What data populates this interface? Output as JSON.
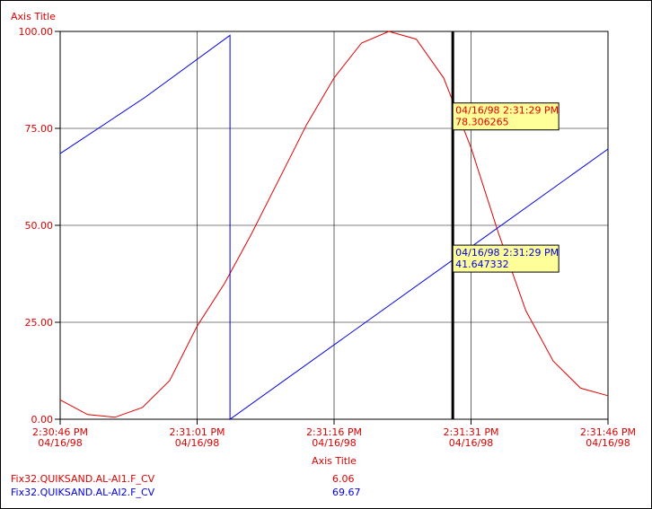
{
  "chart_data": {
    "type": "line",
    "title": "Axis Title",
    "xlabel": "Axis Title",
    "ylabel": "",
    "ylim": [
      0,
      100
    ],
    "yticks": [
      "0.00",
      "25.00",
      "50.00",
      "75.00",
      "100.00"
    ],
    "xlim": [
      "2:30:46 PM",
      "2:31:46 PM"
    ],
    "xticks": [
      {
        "time": "2:30:46 PM",
        "date": "04/16/98"
      },
      {
        "time": "2:31:01 PM",
        "date": "04/16/98"
      },
      {
        "time": "2:31:16 PM",
        "date": "04/16/98"
      },
      {
        "time": "2:31:31 PM",
        "date": "04/16/98"
      },
      {
        "time": "2:31:46 PM",
        "date": "04/16/98"
      }
    ],
    "grid": true,
    "cursor_time": "2:31:29 PM",
    "series": [
      {
        "name": "Fix32.QUIKSAND.AL-AI1.F_CV",
        "color": "#e00000",
        "current_value": "6.06",
        "seconds": [
          0,
          3,
          6,
          9,
          12,
          15,
          18,
          21,
          24,
          27,
          30,
          33,
          36,
          39,
          42,
          45,
          48,
          51,
          54,
          57,
          60
        ],
        "values": [
          5,
          1.2,
          0.5,
          3,
          10,
          24,
          35,
          48,
          62,
          76,
          88,
          97,
          100,
          98,
          88,
          70,
          48,
          28,
          15,
          8,
          6.06
        ],
        "tooltip": {
          "label": "04/16/98 2:31:29 PM",
          "value": "78.306265"
        }
      },
      {
        "name": "Fix32.QUIKSAND.AL-AI2.F_CV",
        "color": "#0000e0",
        "current_value": "69.67",
        "seconds": [
          0,
          9.3,
          18.6,
          18.6,
          60
        ],
        "values": [
          68.5,
          83,
          99,
          0,
          69.67
        ],
        "tooltip": {
          "label": "04/16/98 2:31:29 PM",
          "value": "41.647332"
        }
      }
    ]
  }
}
